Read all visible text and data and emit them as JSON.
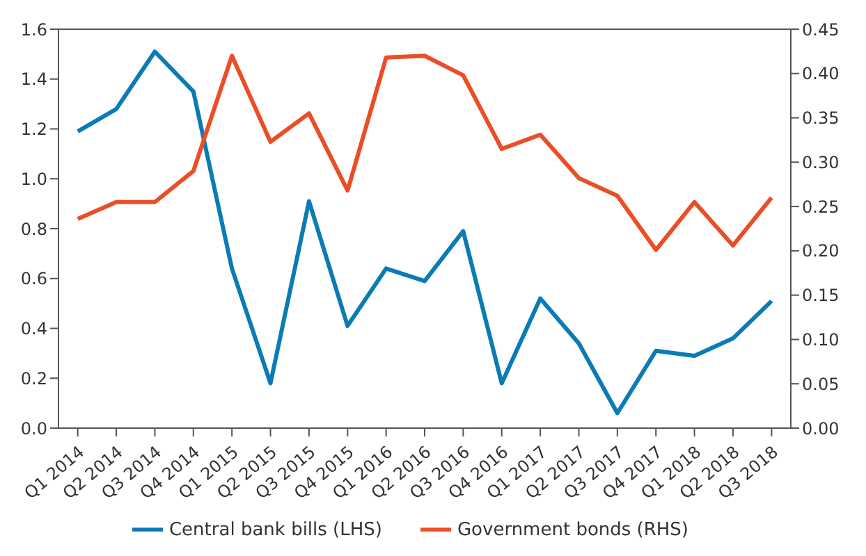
{
  "chart_data": {
    "type": "line",
    "categories": [
      "Q1 2014",
      "Q2 2014",
      "Q3 2014",
      "Q4 2014",
      "Q1 2015",
      "Q2 2015",
      "Q3 2015",
      "Q4 2015",
      "Q1 2016",
      "Q2 2016",
      "Q3 2016",
      "Q4 2016",
      "Q1 2017",
      "Q2 2017",
      "Q3 2017",
      "Q4 2017",
      "Q1 2018",
      "Q2 2018",
      "Q3 2018"
    ],
    "series": [
      {
        "name": "Central bank bills (LHS)",
        "color": "#0a7bb5",
        "values": [
          1.19,
          1.28,
          1.51,
          1.35,
          0.64,
          0.18,
          0.91,
          0.41,
          0.64,
          0.59,
          0.79,
          0.18,
          0.52,
          0.34,
          0.06,
          0.31,
          0.29,
          0.36,
          0.51
        ]
      },
      {
        "name": "Government bonds (RHS)",
        "color": "#ea4e26",
        "axis": "y2",
        "values": [
          0.236,
          0.255,
          0.255,
          0.29,
          0.42,
          0.323,
          0.355,
          0.268,
          0.418,
          0.42,
          0.398,
          0.315,
          0.331,
          0.282,
          0.262,
          0.201,
          0.255,
          0.206,
          0.26
        ]
      }
    ],
    "ylim": [
      0,
      1.6
    ],
    "yticks": [
      {
        "value": 0,
        "label": "0.0"
      },
      {
        "value": 0.2,
        "label": "0.2"
      },
      {
        "value": 0.4,
        "label": "0.4"
      },
      {
        "value": 0.6,
        "label": "0.6"
      },
      {
        "value": 0.8,
        "label": "0.8"
      },
      {
        "value": 1,
        "label": "1.0"
      },
      {
        "value": 1.2,
        "label": "1.2"
      },
      {
        "value": 1.4,
        "label": "1.4"
      },
      {
        "value": 1.6,
        "label": "1.6"
      }
    ],
    "y2lim": [
      0,
      0.45
    ],
    "y2ticks": [
      {
        "value": 0,
        "label": "0.00"
      },
      {
        "value": 0.05,
        "label": "0.05"
      },
      {
        "value": 0.1,
        "label": "0.10"
      },
      {
        "value": 0.15,
        "label": "0.15"
      },
      {
        "value": 0.2,
        "label": "0.20"
      },
      {
        "value": 0.25,
        "label": "0.25"
      },
      {
        "value": 0.3,
        "label": "0.30"
      },
      {
        "value": 0.35,
        "label": "0.35"
      },
      {
        "value": 0.4,
        "label": "0.40"
      },
      {
        "value": 0.45,
        "label": "0.45"
      }
    ],
    "grid": false,
    "legend": "bottom",
    "marker": "none",
    "line_style": "solid"
  }
}
